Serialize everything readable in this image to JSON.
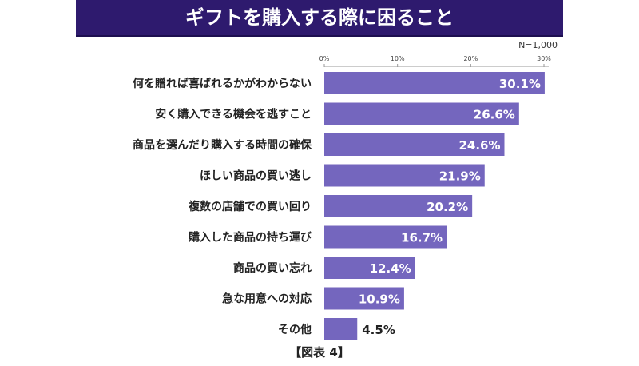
{
  "chart_data": {
    "type": "bar",
    "orientation": "horizontal",
    "title": "ギフトを購入する際に困ること",
    "note": "N=1,000",
    "categories": [
      "何を贈れば喜ばれるかがわからない",
      "安く購入できる機会を逃すこと",
      "商品を選んだり購入する時間の確保",
      "ほしい商品の買い逃し",
      "複数の店舗での買い回り",
      "購入した商品の持ち運び",
      "商品の買い忘れ",
      "急な用意への対応",
      "その他"
    ],
    "values": [
      30.1,
      26.6,
      24.6,
      21.9,
      20.2,
      16.7,
      12.4,
      10.9,
      4.5
    ],
    "data_labels": [
      "30.1%",
      "26.6%",
      "24.6%",
      "21.9%",
      "20.2%",
      "16.7%",
      "12.4%",
      "10.9%",
      "4.5%"
    ],
    "xticks": [
      0,
      10,
      20,
      30
    ],
    "xtick_labels": [
      "0%",
      "10%",
      "20%",
      "30%"
    ],
    "xlim": [
      0,
      30
    ],
    "bar_color": "#7466be",
    "caption": "【図表 4】"
  }
}
